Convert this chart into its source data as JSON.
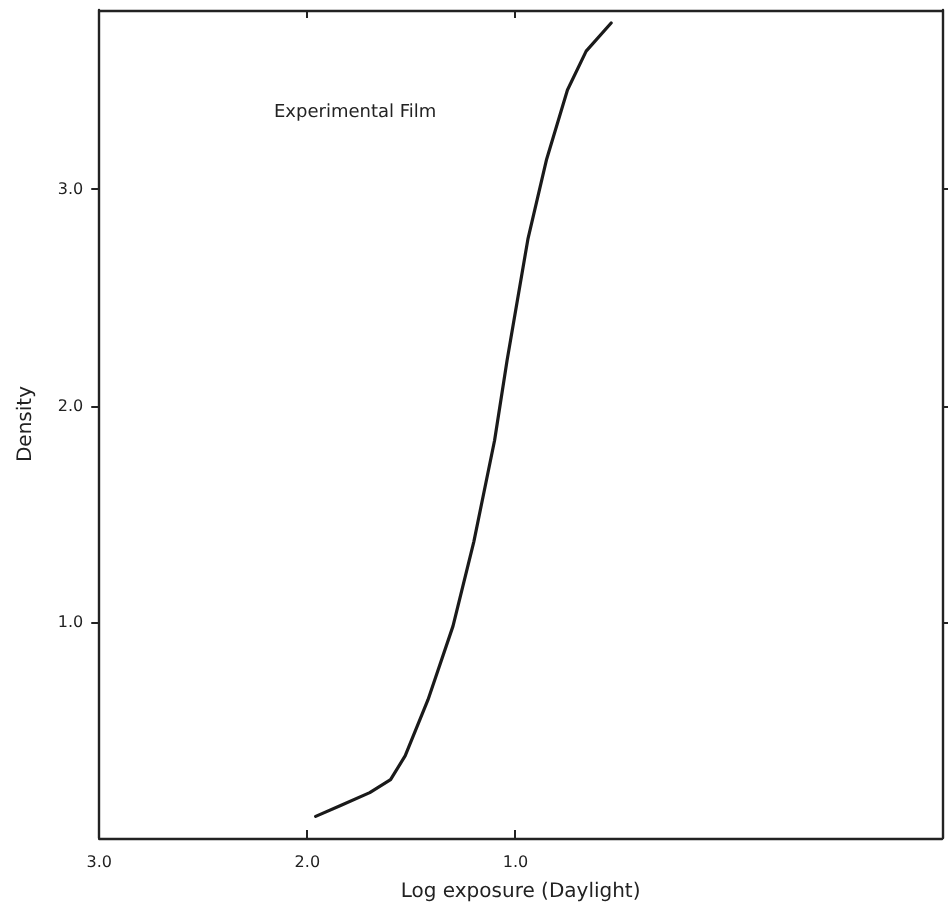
{
  "chart_data": {
    "type": "line",
    "xlabel": "Log exposure (Daylight)",
    "ylabel": "Density",
    "annotations": [
      "Experimental Film"
    ],
    "series": [
      {
        "color": "#1a1a1a",
        "x": [
          1.96,
          1.84,
          1.7,
          1.6,
          1.53,
          1.42,
          1.3,
          1.2,
          1.1,
          1.04,
          0.94,
          0.85,
          0.75,
          0.66,
          0.54
        ],
        "values": [
          0.1,
          0.15,
          0.21,
          0.27,
          0.38,
          0.64,
          0.98,
          1.37,
          1.84,
          2.21,
          2.77,
          3.14,
          3.46,
          3.64,
          3.77
        ]
      }
    ],
    "xlim": [
      3.0,
      -1.05
    ],
    "xticks": [
      {
        "value": 3,
        "label": "3.0"
      },
      {
        "value": 2,
        "label": "2.0"
      },
      {
        "value": 1,
        "label": "1.0"
      }
    ],
    "ylim": [
      0,
      3.83
    ],
    "yticks": [
      {
        "value": 1,
        "label": "1.0"
      },
      {
        "value": 2,
        "label": "2.0"
      },
      {
        "value": 3,
        "label": "3.0"
      }
    ],
    "grid": false,
    "marker": "none",
    "line_style": "solid"
  }
}
